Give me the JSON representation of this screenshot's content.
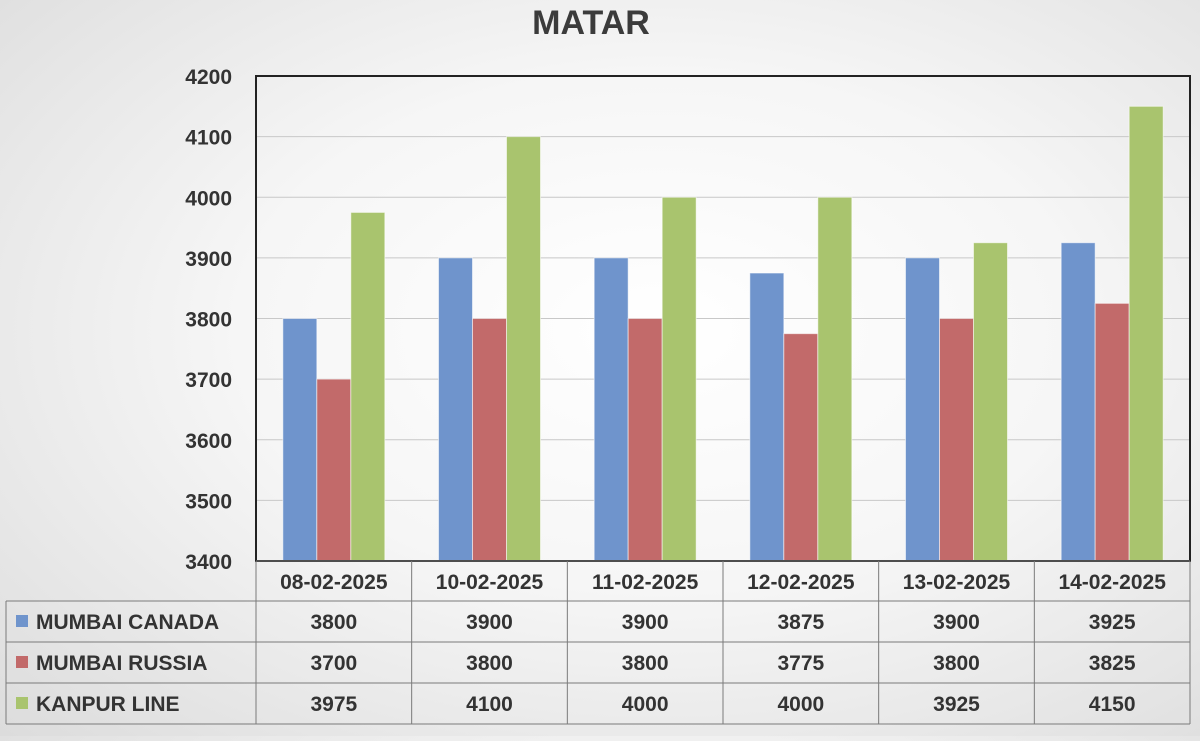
{
  "chart_data": {
    "type": "bar",
    "title": "MATAR",
    "categories": [
      "08-02-2025",
      "10-02-2025",
      "11-02-2025",
      "12-02-2025",
      "13-02-2025",
      "14-02-2025"
    ],
    "series": [
      {
        "name": "MUMBAI CANADA",
        "values": [
          3800,
          3900,
          3900,
          3875,
          3900,
          3925
        ],
        "color": "#6f94cc"
      },
      {
        "name": "MUMBAI RUSSIA",
        "values": [
          3700,
          3800,
          3800,
          3775,
          3800,
          3825
        ],
        "color": "#c26a6a"
      },
      {
        "name": "KANPUR LINE",
        "values": [
          3975,
          4100,
          4000,
          4000,
          3925,
          4150
        ],
        "color": "#a9c46e"
      }
    ],
    "ylim": [
      3400,
      4200
    ],
    "yticks": [
      3400,
      3500,
      3600,
      3700,
      3800,
      3900,
      4000,
      4100,
      4200
    ],
    "grid": true,
    "legend": "data-table"
  }
}
